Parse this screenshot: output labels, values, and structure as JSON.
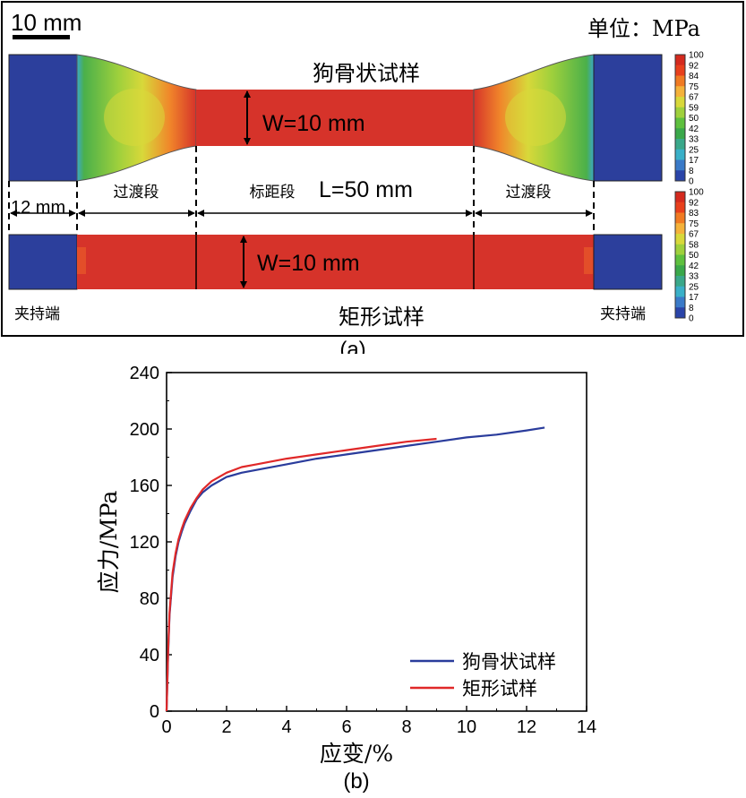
{
  "panel_a": {
    "scale_bar_label": "10 mm",
    "unit_label": "单位：MPa",
    "dogbone_title": "狗骨状试样",
    "rect_title": "矩形试样",
    "width_label_top": "W=10 mm",
    "width_label_bottom": "W=10 mm",
    "gauge_length_label": "L=50 mm",
    "section_transition_left": "过渡段",
    "section_gauge": "标距段",
    "section_transition_right": "过渡段",
    "grip_width_label": "12 mm",
    "grip_left_label": "夹持端",
    "grip_right_label": "夹持端",
    "caption": "(a)",
    "legend_top_ticks": [
      "100",
      "92",
      "84",
      "75",
      "67",
      "59",
      "50",
      "42",
      "33",
      "25",
      "17",
      "8",
      "0"
    ],
    "legend_bottom_ticks": [
      "100",
      "92",
      "83",
      "75",
      "67",
      "58",
      "50",
      "42",
      "33",
      "25",
      "17",
      "8",
      "0"
    ],
    "legend_colors": [
      "#d42a1e",
      "#e8401c",
      "#f07a22",
      "#f4b23a",
      "#d8d83a",
      "#9fd03c",
      "#5ec03e",
      "#3aa84a",
      "#3aa88a",
      "#3ab0c8",
      "#3a7ac8",
      "#2a44a8"
    ],
    "colors": {
      "grip": "#2c3f9c",
      "uniform": "#d6332a",
      "transition_low": "#4bb04a",
      "transition_mid": "#c8d43c",
      "transition_high": "#f0862a"
    }
  },
  "panel_b": {
    "caption": "(b)",
    "chart_data": {
      "type": "line",
      "title": "",
      "xlabel": "应变/%",
      "ylabel": "应力/MPa",
      "xlim": [
        0,
        14
      ],
      "ylim": [
        0,
        240
      ],
      "xticks": [
        "0",
        "2",
        "4",
        "6",
        "8",
        "10",
        "12",
        "14"
      ],
      "yticks": [
        "0",
        "40",
        "80",
        "120",
        "160",
        "200",
        "240"
      ],
      "legend_position": "bottom-right",
      "series": [
        {
          "name": "狗骨状试样",
          "color": "#2a3c9c",
          "x": [
            0,
            0.05,
            0.1,
            0.2,
            0.3,
            0.4,
            0.5,
            0.6,
            0.8,
            1.0,
            1.2,
            1.5,
            2.0,
            2.5,
            3.0,
            4.0,
            5.0,
            6.0,
            7.0,
            8.0,
            9.0,
            10.0,
            11.0,
            12.0,
            12.6
          ],
          "y": [
            0,
            40,
            68,
            95,
            110,
            120,
            127,
            133,
            142,
            150,
            155,
            160,
            166,
            169,
            171,
            175,
            179,
            182,
            185,
            188,
            191,
            194,
            196,
            199,
            201
          ]
        },
        {
          "name": "矩形试样",
          "color": "#e02828",
          "x": [
            0,
            0.05,
            0.1,
            0.2,
            0.3,
            0.4,
            0.5,
            0.6,
            0.8,
            1.0,
            1.2,
            1.5,
            2.0,
            2.5,
            3.0,
            4.0,
            5.0,
            6.0,
            7.0,
            8.0,
            9.0
          ],
          "y": [
            0,
            42,
            70,
            98,
            112,
            122,
            129,
            135,
            144,
            151,
            157,
            163,
            169,
            173,
            175,
            179,
            182,
            185,
            188,
            191,
            193
          ]
        }
      ]
    }
  }
}
